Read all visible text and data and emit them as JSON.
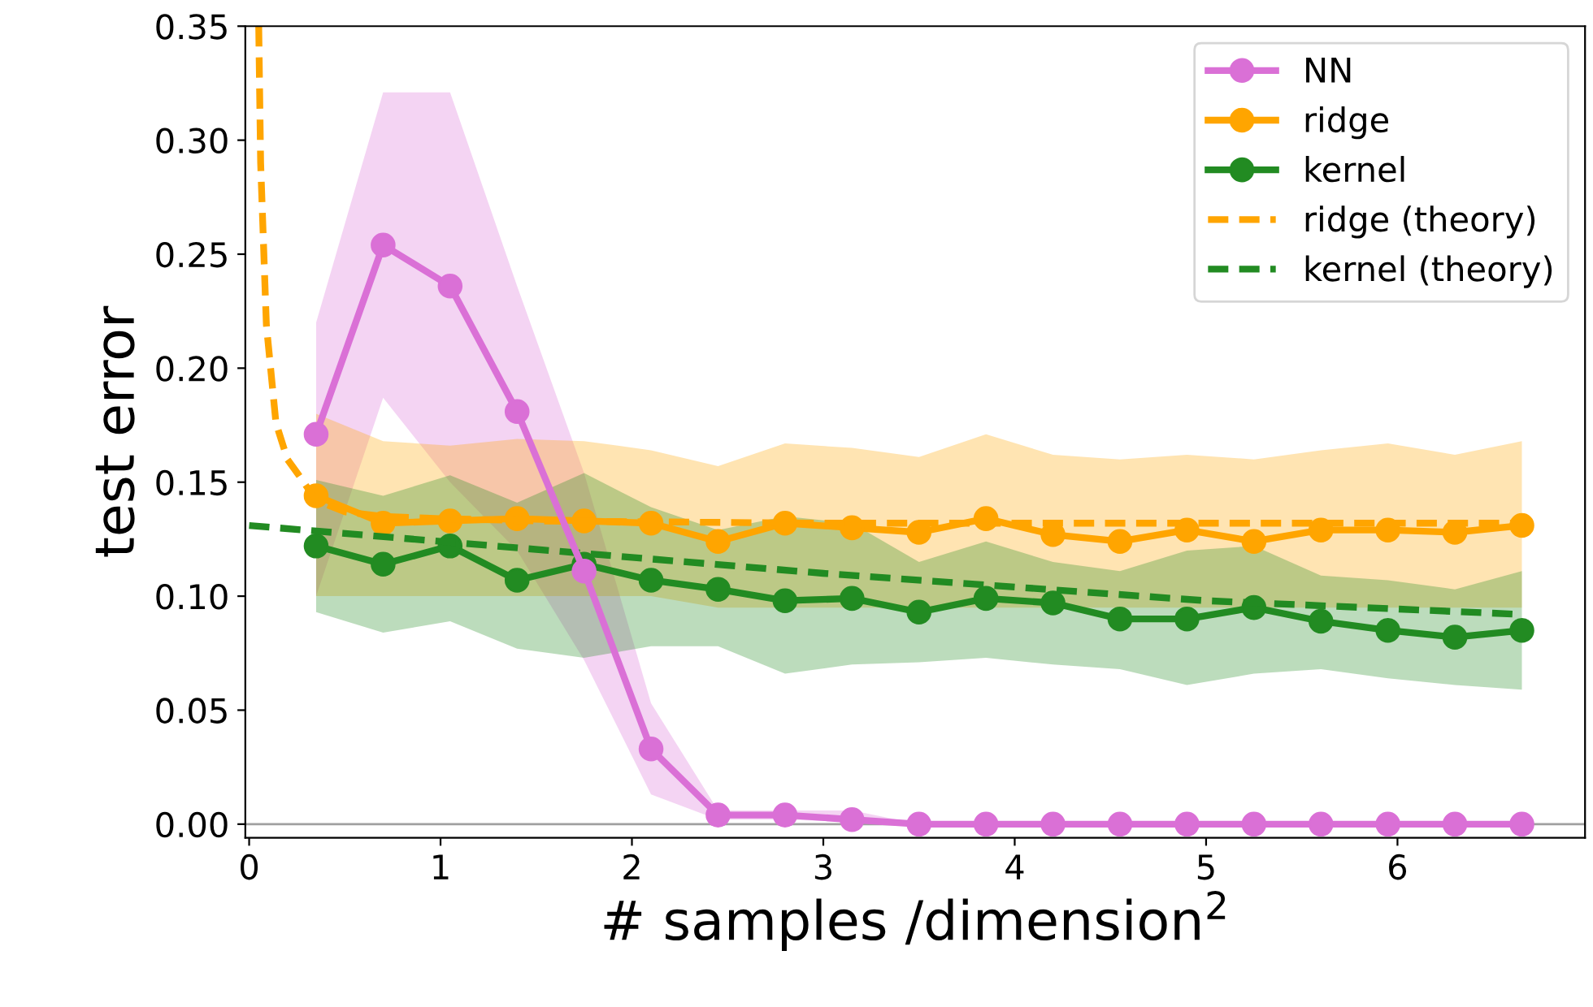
{
  "chart_data": {
    "type": "line",
    "xlabel": "# samples /dimension$^{2}$",
    "ylabel": "test error",
    "xlim": [
      -0.02,
      6.98
    ],
    "ylim": [
      -0.006,
      0.35
    ],
    "xticks": [
      0,
      1,
      2,
      3,
      4,
      5,
      6
    ],
    "yticks": [
      {
        "value": 0,
        "label": "0.00"
      },
      {
        "value": 0.05,
        "label": "0.05"
      },
      {
        "value": 0.1,
        "label": "0.10"
      },
      {
        "value": 0.15,
        "label": "0.15"
      },
      {
        "value": 0.2,
        "label": "0.20"
      },
      {
        "value": 0.25,
        "label": "0.25"
      },
      {
        "value": 0.3,
        "label": "0.30"
      },
      {
        "value": 0.35,
        "label": "0.35"
      }
    ],
    "grid": false,
    "legend": "top right",
    "ref_lines": [
      {
        "axis": "y",
        "value": 0,
        "color": "#a0a0a0"
      }
    ],
    "x": [
      0.35,
      0.7,
      1.05,
      1.4,
      1.75,
      2.1,
      2.45,
      2.8,
      3.15,
      3.5,
      3.85,
      4.2,
      4.55,
      4.9,
      5.25,
      5.6,
      5.95,
      6.3,
      6.65
    ],
    "series": [
      {
        "name": "NN",
        "color": "#da70d6",
        "marker": "circle",
        "line_style": "solid",
        "values": [
          0.171,
          0.254,
          0.236,
          0.181,
          0.111,
          0.033,
          0.004,
          0.004,
          0.002,
          0,
          0,
          0,
          0,
          0,
          0,
          0,
          0,
          0,
          0
        ],
        "lower": [
          0.1,
          0.187,
          0.15,
          0.12,
          0.072,
          0.013,
          0.002,
          0.002,
          0.001,
          0,
          0,
          0,
          0,
          0,
          0,
          0,
          0,
          0,
          0
        ],
        "upper": [
          0.22,
          0.321,
          0.321,
          0.236,
          0.154,
          0.053,
          0.006,
          0.006,
          0.006,
          0,
          0,
          0,
          0,
          0,
          0,
          0,
          0,
          0,
          0
        ]
      },
      {
        "name": "ridge",
        "color": "#ffa500",
        "marker": "circle",
        "line_style": "solid",
        "values": [
          0.144,
          0.132,
          0.133,
          0.134,
          0.133,
          0.132,
          0.124,
          0.132,
          0.13,
          0.128,
          0.134,
          0.127,
          0.124,
          0.129,
          0.124,
          0.129,
          0.129,
          0.128,
          0.131
        ],
        "lower": [
          0.1,
          0.1,
          0.1,
          0.1,
          0.1,
          0.1,
          0.095,
          0.095,
          0.095,
          0.095,
          0.095,
          0.095,
          0.095,
          0.095,
          0.095,
          0.095,
          0.095,
          0.095,
          0.095
        ],
        "upper": [
          0.18,
          0.168,
          0.166,
          0.169,
          0.168,
          0.164,
          0.157,
          0.167,
          0.165,
          0.161,
          0.171,
          0.162,
          0.16,
          0.162,
          0.16,
          0.164,
          0.167,
          0.162,
          0.168
        ]
      },
      {
        "name": "kernel",
        "color": "#228b22",
        "marker": "circle",
        "line_style": "solid",
        "values": [
          0.122,
          0.114,
          0.122,
          0.107,
          0.114,
          0.107,
          0.103,
          0.098,
          0.099,
          0.093,
          0.099,
          0.097,
          0.09,
          0.09,
          0.095,
          0.089,
          0.085,
          0.082,
          0.085
        ],
        "lower": [
          0.093,
          0.084,
          0.089,
          0.077,
          0.073,
          0.078,
          0.078,
          0.066,
          0.07,
          0.071,
          0.073,
          0.07,
          0.068,
          0.061,
          0.066,
          0.068,
          0.064,
          0.061,
          0.059
        ],
        "upper": [
          0.151,
          0.144,
          0.153,
          0.141,
          0.154,
          0.139,
          0.129,
          0.135,
          0.132,
          0.115,
          0.124,
          0.115,
          0.111,
          0.12,
          0.122,
          0.109,
          0.107,
          0.103,
          0.111
        ]
      },
      {
        "name": "ridge (theory)",
        "color": "#ffa500",
        "marker": "none",
        "line_style": "dashed",
        "x": [
          0.05,
          0.06,
          0.09,
          0.14,
          0.2,
          0.26,
          0.35,
          0.5,
          0.7,
          1.0,
          1.5,
          3,
          6.65
        ],
        "values": [
          0.35,
          0.29,
          0.219,
          0.176,
          0.16,
          0.153,
          0.142,
          0.137,
          0.135,
          0.134,
          0.133,
          0.132,
          0.132
        ]
      },
      {
        "name": "kernel (theory)",
        "color": "#228b22",
        "marker": "none",
        "line_style": "dashed",
        "x": [
          0,
          1,
          2,
          3,
          4,
          5,
          6.65
        ],
        "values": [
          0.131,
          0.124,
          0.117,
          0.11,
          0.104,
          0.098,
          0.092
        ]
      }
    ]
  }
}
